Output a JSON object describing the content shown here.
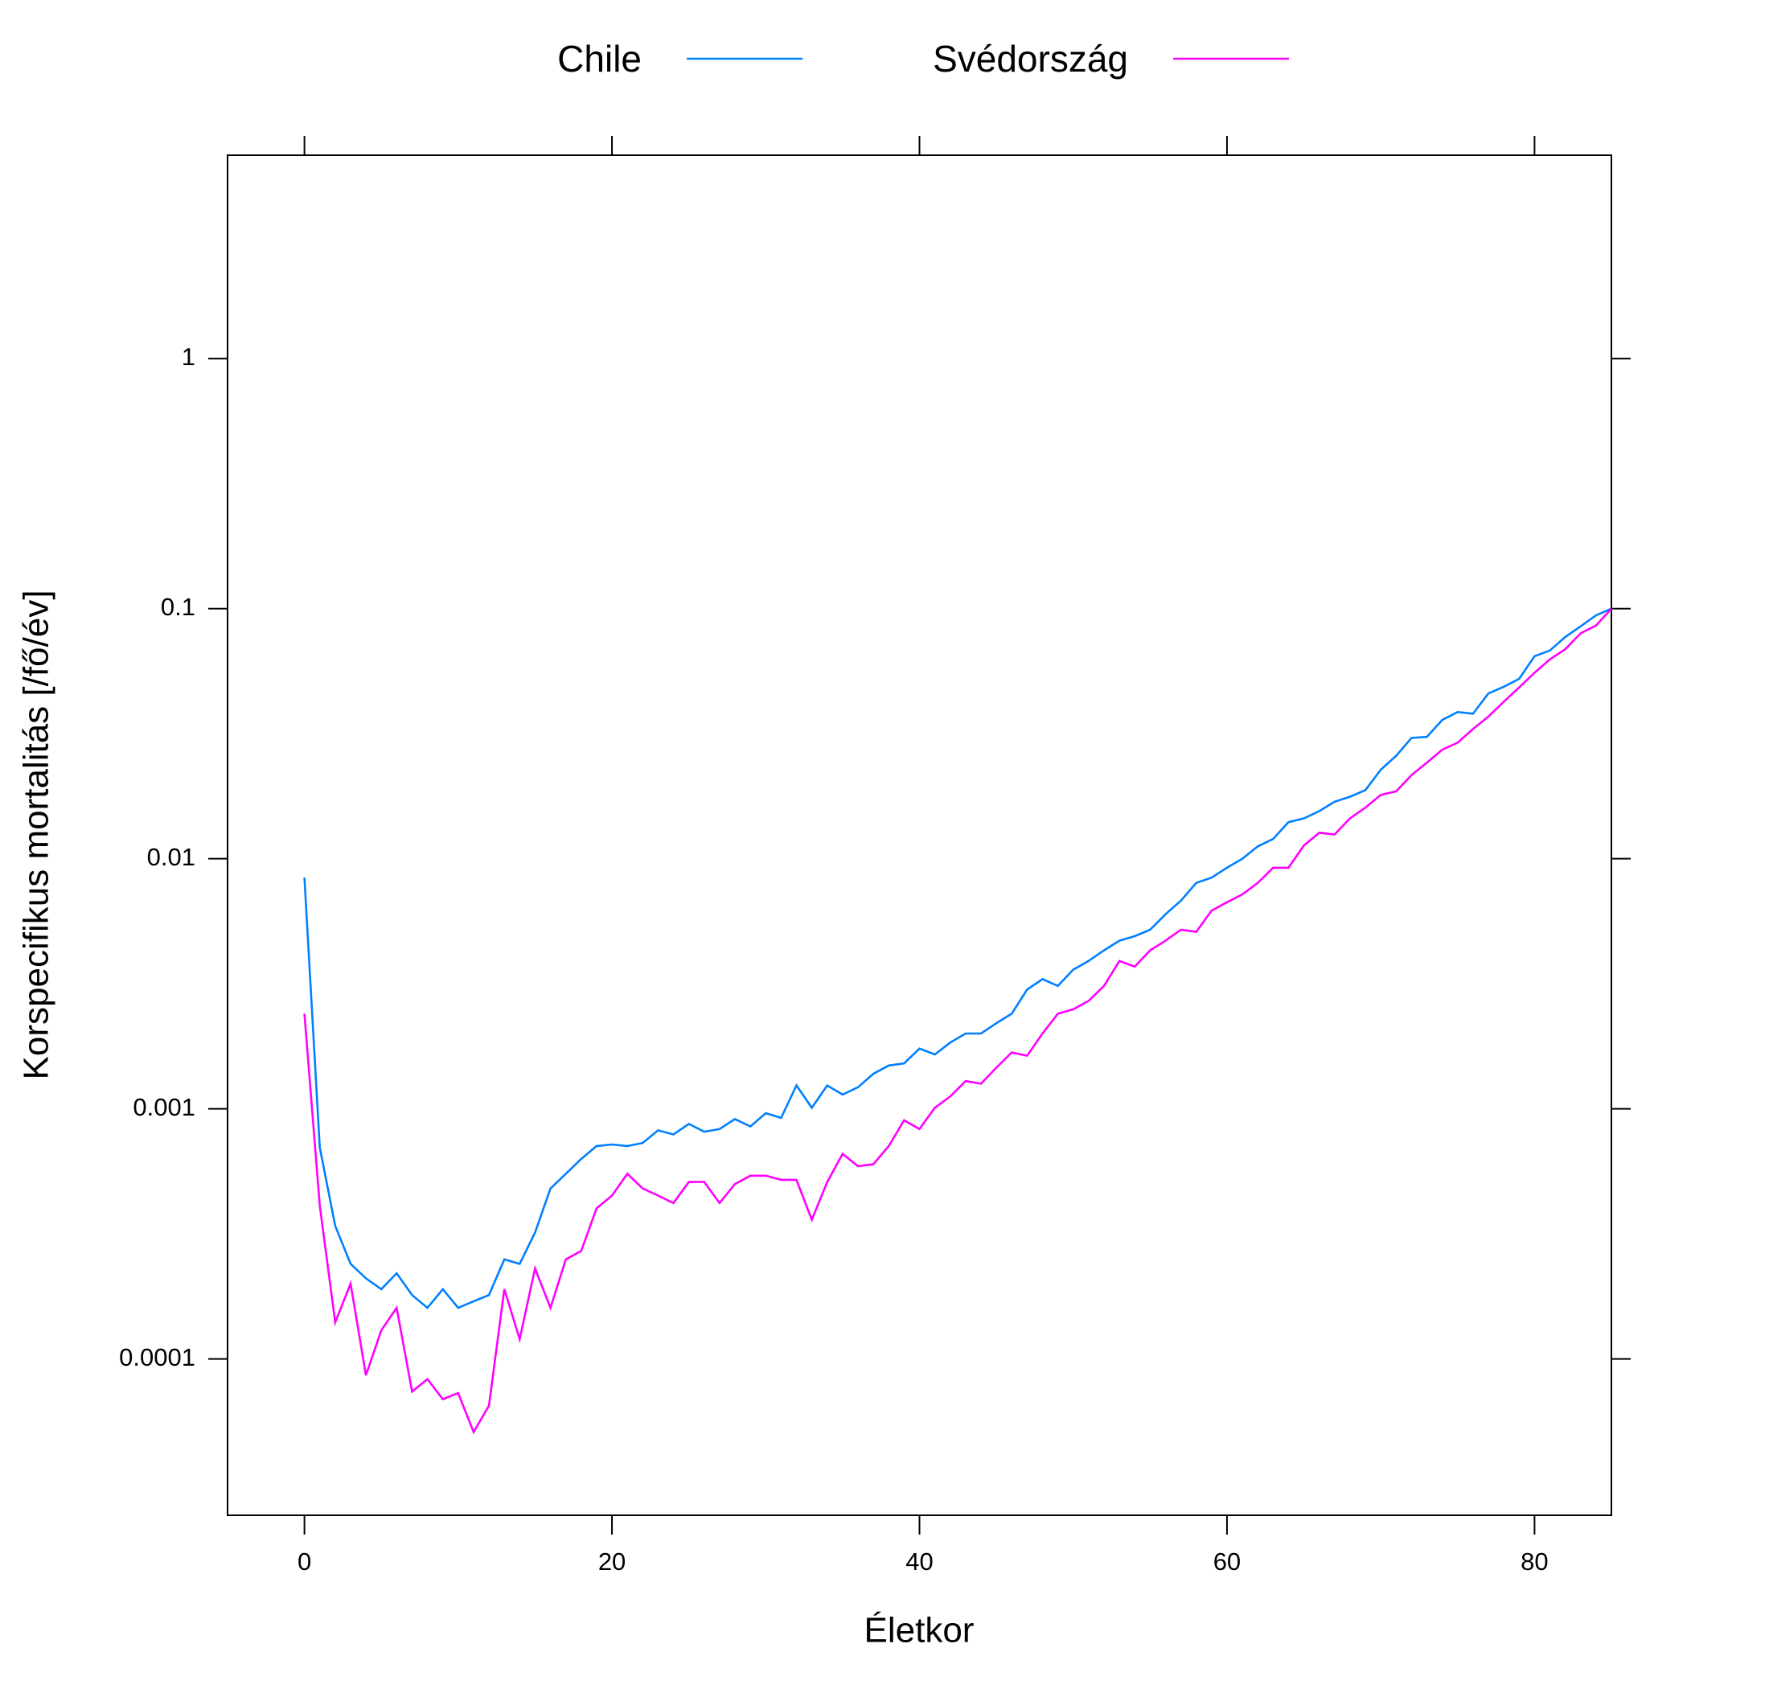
{
  "chart_data": {
    "type": "line",
    "x_label": "Életkor",
    "y_label": "Korspecifikus mortalitás [/fő/év]",
    "x": [
      0,
      1,
      2,
      3,
      4,
      5,
      6,
      7,
      8,
      9,
      10,
      11,
      12,
      13,
      14,
      15,
      16,
      17,
      18,
      19,
      20,
      21,
      22,
      23,
      24,
      25,
      26,
      27,
      28,
      29,
      30,
      31,
      32,
      33,
      34,
      35,
      36,
      37,
      38,
      39,
      40,
      41,
      42,
      43,
      44,
      45,
      46,
      47,
      48,
      49,
      50,
      51,
      52,
      53,
      54,
      55,
      56,
      57,
      58,
      59,
      60,
      61,
      62,
      63,
      64,
      65,
      66,
      67,
      68,
      69,
      70,
      71,
      72,
      73,
      74,
      75,
      76,
      77,
      78,
      79,
      80,
      81,
      82,
      83,
      84,
      85
    ],
    "series": [
      {
        "name": "Chile",
        "color": "#0080ff",
        "values": [
          0.0084,
          0.0007,
          0.00034,
          0.00024,
          0.00021,
          0.00019,
          0.00022,
          0.00018,
          0.00016,
          0.00019,
          0.00016,
          0.00017,
          0.00018,
          0.00025,
          0.00024,
          0.00032,
          0.00048,
          0.00055,
          0.00063,
          0.00071,
          0.00072,
          0.00071,
          0.00073,
          0.00082,
          0.00079,
          0.00087,
          0.00081,
          0.00083,
          0.00091,
          0.00085,
          0.00096,
          0.00092,
          0.00124,
          0.00101,
          0.00124,
          0.00114,
          0.00122,
          0.00138,
          0.00149,
          0.00152,
          0.00174,
          0.00165,
          0.00184,
          0.002,
          0.002,
          0.0022,
          0.0024,
          0.003,
          0.0033,
          0.0031,
          0.0036,
          0.0039,
          0.0043,
          0.0047,
          0.0049,
          0.0052,
          0.006,
          0.0068,
          0.008,
          0.0084,
          0.0092,
          0.01,
          0.0112,
          0.012,
          0.014,
          0.0145,
          0.0155,
          0.0169,
          0.0177,
          0.0188,
          0.0227,
          0.0258,
          0.0304,
          0.0307,
          0.0359,
          0.0386,
          0.038,
          0.0458,
          0.0487,
          0.0524,
          0.0645,
          0.068,
          0.077,
          0.085,
          0.094,
          0.1
        ]
      },
      {
        "name": "Svédország",
        "color": "#ff00ff",
        "values": [
          0.0024,
          0.00041,
          0.00014,
          0.0002,
          8.6e-05,
          0.00013,
          0.00016,
          7.4e-05,
          8.3e-05,
          6.9e-05,
          7.3e-05,
          5.1e-05,
          6.5e-05,
          0.00019,
          0.00012,
          0.00023,
          0.00016,
          0.00025,
          0.00027,
          0.0004,
          0.00045,
          0.00055,
          0.00048,
          0.00045,
          0.00042,
          0.00051,
          0.00051,
          0.00042,
          0.0005,
          0.00054,
          0.00054,
          0.00052,
          0.00052,
          0.00036,
          0.00051,
          0.00066,
          0.00059,
          0.0006,
          0.00071,
          0.0009,
          0.00083,
          0.00101,
          0.00112,
          0.00129,
          0.00126,
          0.00146,
          0.00168,
          0.00163,
          0.002,
          0.0024,
          0.0025,
          0.0027,
          0.0031,
          0.0039,
          0.0037,
          0.0043,
          0.0047,
          0.0052,
          0.0051,
          0.0062,
          0.0067,
          0.0072,
          0.008,
          0.0092,
          0.0092,
          0.0113,
          0.0127,
          0.0125,
          0.0145,
          0.016,
          0.018,
          0.0186,
          0.0216,
          0.0242,
          0.0273,
          0.0291,
          0.033,
          0.037,
          0.0424,
          0.0484,
          0.0554,
          0.0627,
          0.0688,
          0.0797,
          0.0856,
          0.1
        ]
      }
    ],
    "xlim": [
      -5,
      85
    ],
    "xticks": [
      0,
      20,
      40,
      60,
      80
    ],
    "ylim": [
      2.37e-05,
      6.5
    ],
    "yticks": [
      0.0001,
      0.001,
      0.01,
      0.1,
      1
    ],
    "ylog": true,
    "legend": "top"
  }
}
